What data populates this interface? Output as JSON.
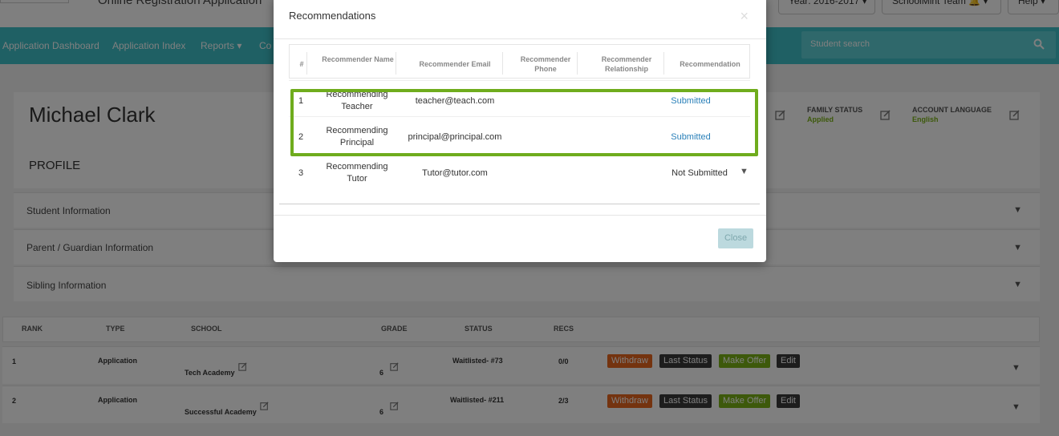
{
  "header": {
    "app_title": "Online Registration Application",
    "year_label": "Year: 2016-2017 ▾",
    "user_label": "SchoolMint Team",
    "help_label": "Help ▾"
  },
  "nav": {
    "items": [
      "Application Dashboard",
      "Application Index",
      "Reports ▾",
      "Co"
    ],
    "search_placeholder": "Student search"
  },
  "profile": {
    "student_name": "Michael Clark",
    "profile_label": "PROFILE",
    "family_status_label": "FAMILY STATUS",
    "family_status_value": "Applied",
    "account_language_label": "ACCOUNT LANGUAGE",
    "account_language_value": "English"
  },
  "sections": [
    "Student Information",
    "Parent / Guardian Information",
    "Sibling Information"
  ],
  "applications": {
    "headers": [
      "RANK",
      "TYPE",
      "SCHOOL",
      "GRADE",
      "STATUS",
      "RECS"
    ],
    "rows": [
      {
        "rank": "1",
        "type": "Application",
        "school": "Tech Academy",
        "grade": "6",
        "status": "Waitlisted- #73",
        "recs": "0/0"
      },
      {
        "rank": "2",
        "type": "Application",
        "school": "Successful Academy",
        "grade": "6",
        "status": "Waitlisted- #211",
        "recs": "2/3"
      }
    ],
    "actions": {
      "withdraw": "Withdraw",
      "last_status": "Last Status",
      "make_offer": "Make Offer",
      "edit": "Edit"
    }
  },
  "modal": {
    "title": "Recommendations",
    "close_x": "×",
    "headers": {
      "num": "#",
      "name": "Recommender Name",
      "email": "Recommender Email",
      "phone": "Recommender Phone",
      "relationship": "Recommender Relationship",
      "recommendation": "Recommendation"
    },
    "rows": [
      {
        "num": "1",
        "name": "Recommending Teacher",
        "email": "teacher@teach.com",
        "recommendation": "Submitted"
      },
      {
        "num": "2",
        "name": "Recommending Principal",
        "email": "principal@principal.com",
        "recommendation": "Submitted"
      },
      {
        "num": "3",
        "name": "Recommending Tutor",
        "email": "Tutor@tutor.com",
        "recommendation": "Not Submitted"
      }
    ],
    "close_label": "Close"
  },
  "colors": {
    "nav": "#3fc1c9",
    "highlight": "#6fac1d",
    "link": "#2a80b9",
    "withdraw": "#e8661e",
    "offer": "#7ab317"
  }
}
